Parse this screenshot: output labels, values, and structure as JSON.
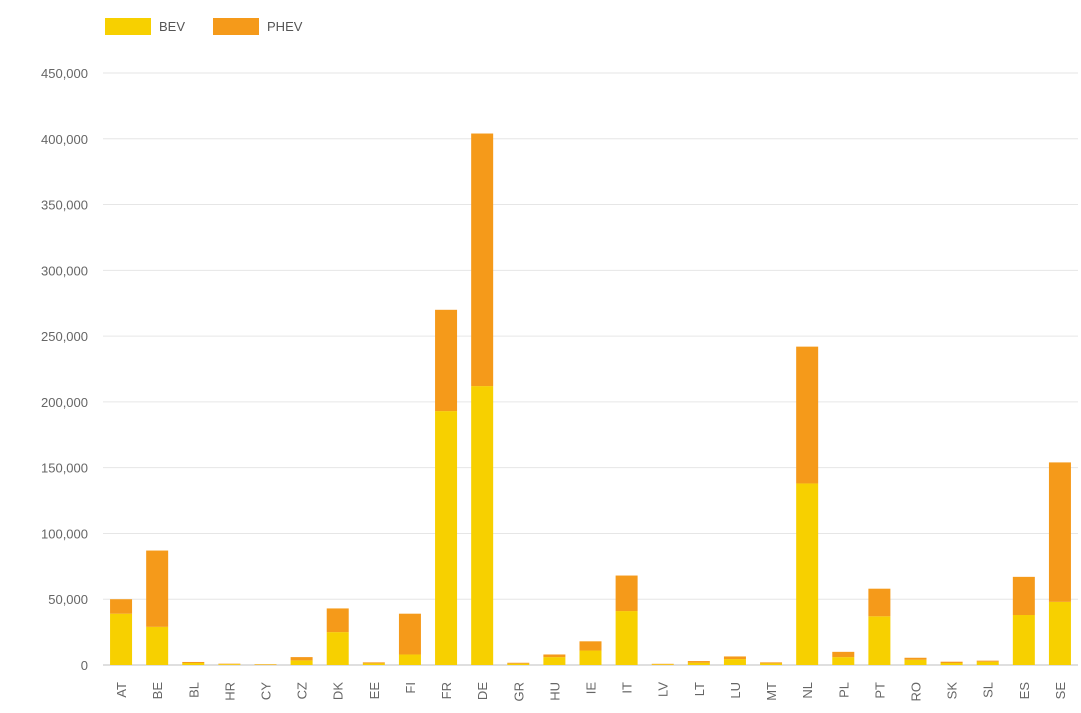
{
  "colors": {
    "BEV": "#f7d000",
    "PHEV": "#f59a1a",
    "grid": "#e6e6e6",
    "axis": "#bfbfbf",
    "text": "#666666"
  },
  "chart_data": {
    "type": "bar",
    "stacked": true,
    "categories": [
      "AT",
      "BE",
      "BL",
      "HR",
      "CY",
      "CZ",
      "DK",
      "EE",
      "FI",
      "FR",
      "DE",
      "GR",
      "HU",
      "IE",
      "IT",
      "LV",
      "LT",
      "LU",
      "MT",
      "NL",
      "PL",
      "PT",
      "RO",
      "SK",
      "SL",
      "ES",
      "SE"
    ],
    "series": [
      {
        "name": "BEV",
        "values": [
          39000,
          29000,
          1500,
          600,
          300,
          3500,
          25000,
          1200,
          8000,
          193000,
          212000,
          1000,
          6000,
          11000,
          41000,
          500,
          1800,
          4500,
          1200,
          138000,
          6000,
          37000,
          4000,
          1500,
          2500,
          38000,
          48000
        ]
      },
      {
        "name": "PHEV",
        "values": [
          11000,
          58000,
          800,
          400,
          300,
          2500,
          18000,
          800,
          31000,
          77000,
          192000,
          700,
          2000,
          7000,
          27000,
          400,
          1200,
          2000,
          800,
          104000,
          4000,
          21000,
          1500,
          1000,
          800,
          29000,
          106000
        ]
      }
    ],
    "ylim": [
      0,
      450000
    ],
    "yticks": [
      0,
      50000,
      100000,
      150000,
      200000,
      250000,
      300000,
      350000,
      400000,
      450000
    ],
    "ytick_labels": [
      "0",
      "50,000",
      "100,000",
      "150,000",
      "200,000",
      "250,000",
      "300,000",
      "350,000",
      "400,000",
      "450,000"
    ],
    "grid": true,
    "legend_position": "top-left"
  }
}
